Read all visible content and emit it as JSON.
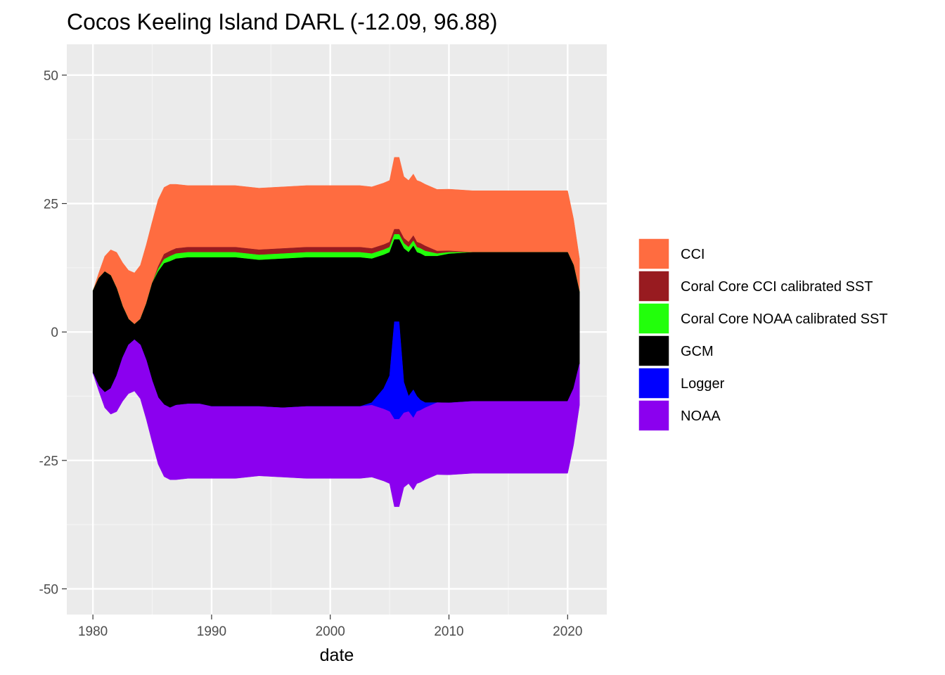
{
  "chart_data": {
    "type": "area",
    "title": "Cocos Keeling Island DARL (-12.09, 96.88)",
    "xlabel": "date",
    "ylabel": "",
    "xlim": [
      1977.8,
      2023.3
    ],
    "ylim": [
      -55,
      56
    ],
    "x_ticks": [
      1980,
      1990,
      2000,
      2010,
      2020
    ],
    "y_ticks": [
      -50,
      -25,
      0,
      25,
      50
    ],
    "grid": true,
    "legend_position": "right",
    "stacking": "symmetric streamgraph (stacked, centered at 0)",
    "x": [
      1980.0,
      1980.5,
      1981.0,
      1981.5,
      1982.0,
      1982.5,
      1983.0,
      1983.5,
      1984.0,
      1984.5,
      1985.0,
      1985.5,
      1986.0,
      1986.5,
      1987.0,
      1988.0,
      1989.0,
      1990.0,
      1992.0,
      1994.0,
      1996.0,
      1998.0,
      1999.5,
      2001.0,
      2002.5,
      2003.5,
      2004.5,
      2005.0,
      2005.4,
      2005.8,
      2006.2,
      2006.6,
      2007.0,
      2007.3,
      2007.6,
      2008.0,
      2009.0,
      2010.0,
      2012.0,
      2014.0,
      2016.0,
      2018.0,
      2019.0,
      2019.5,
      2020.0,
      2020.5,
      2021.0
    ],
    "series": [
      {
        "name": "CCI",
        "color": "#FF6C40",
        "values": [
          0.0,
          1.0,
          3.0,
          5.0,
          7.0,
          8.5,
          9.5,
          10.0,
          10.5,
          11.5,
          12.0,
          13.0,
          13.0,
          13.0,
          12.5,
          12.0,
          12.0,
          12.0,
          12.0,
          12.0,
          12.0,
          12.0,
          12.0,
          12.0,
          12.0,
          12.0,
          12.0,
          12.0,
          14.0,
          14.0,
          12.0,
          12.0,
          12.0,
          12.0,
          12.0,
          12.0,
          12.0,
          12.0,
          12.0,
          12.0,
          12.0,
          12.0,
          12.0,
          12.0,
          12.0,
          9.0,
          6.5
        ]
      },
      {
        "name": "Coral Core CCI calibrated SST",
        "color": "#981B20",
        "values": [
          0.0,
          0.0,
          0.0,
          0.0,
          0.0,
          0.0,
          0.0,
          0.0,
          0.0,
          0.0,
          0.0,
          0.5,
          1.0,
          1.0,
          1.0,
          1.0,
          1.0,
          1.0,
          1.0,
          1.0,
          1.0,
          1.0,
          1.0,
          1.0,
          1.0,
          1.0,
          1.0,
          1.0,
          1.0,
          1.0,
          1.0,
          1.0,
          1.0,
          1.0,
          1.0,
          1.0,
          0.5,
          0.3,
          0.0,
          0.0,
          0.0,
          0.0,
          0.0,
          0.0,
          0.0,
          0.0,
          0.0
        ]
      },
      {
        "name": "Coral Core NOAA calibrated SST",
        "color": "#22FF0B",
        "values": [
          0.0,
          0.0,
          0.0,
          0.0,
          0.0,
          0.0,
          0.0,
          0.0,
          0.0,
          0.0,
          0.0,
          0.5,
          0.8,
          1.0,
          1.0,
          1.0,
          1.0,
          1.0,
          1.0,
          1.0,
          1.0,
          1.0,
          1.0,
          1.0,
          1.0,
          1.0,
          1.0,
          1.0,
          1.0,
          1.0,
          1.0,
          1.0,
          1.0,
          1.0,
          1.0,
          1.0,
          0.5,
          0.3,
          0.0,
          0.0,
          0.0,
          0.0,
          0.0,
          0.0,
          0.0,
          0.0,
          0.0
        ]
      },
      {
        "name": "GCM",
        "color": "#000000",
        "values": [
          16.0,
          21.0,
          23.5,
          22.0,
          17.0,
          10.0,
          5.0,
          3.0,
          5.0,
          11.0,
          19.0,
          24.5,
          27.5,
          28.5,
          28.5,
          28.5,
          28.5,
          29.0,
          29.0,
          28.5,
          29.0,
          29.0,
          29.0,
          29.0,
          29.0,
          28.0,
          26.0,
          24.0,
          16.0,
          16.0,
          26.0,
          28.0,
          28.0,
          28.0,
          28.5,
          28.5,
          28.5,
          29.0,
          29.0,
          29.0,
          29.0,
          29.0,
          29.0,
          29.0,
          29.0,
          24.0,
          14.0
        ]
      },
      {
        "name": "Logger",
        "color": "#0000FF",
        "values": [
          0.0,
          0.0,
          0.0,
          0.0,
          0.0,
          0.0,
          0.0,
          0.0,
          0.0,
          0.0,
          0.0,
          0.0,
          0.0,
          0.0,
          0.0,
          0.0,
          0.0,
          0.0,
          0.0,
          0.0,
          0.0,
          0.0,
          0.0,
          0.0,
          0.0,
          0.5,
          4.0,
          7.0,
          19.0,
          19.0,
          6.0,
          3.0,
          5.5,
          3.0,
          2.0,
          1.0,
          0.0,
          0.0,
          0.0,
          0.0,
          0.0,
          0.0,
          0.0,
          0.0,
          0.0,
          0.0,
          0.0
        ]
      },
      {
        "name": "NOAA",
        "color": "#8B00EF",
        "values": [
          0.0,
          1.0,
          3.0,
          5.0,
          7.0,
          8.5,
          9.5,
          10.0,
          10.5,
          11.5,
          12.0,
          13.0,
          14.0,
          14.0,
          14.5,
          14.5,
          14.5,
          14.0,
          14.0,
          13.5,
          13.5,
          14.0,
          14.0,
          14.0,
          14.0,
          14.0,
          14.0,
          14.0,
          17.0,
          17.0,
          14.5,
          14.0,
          14.0,
          14.0,
          14.0,
          14.0,
          14.0,
          14.0,
          14.0,
          14.0,
          14.0,
          14.0,
          14.0,
          14.0,
          14.0,
          11.0,
          8.0
        ]
      }
    ]
  }
}
